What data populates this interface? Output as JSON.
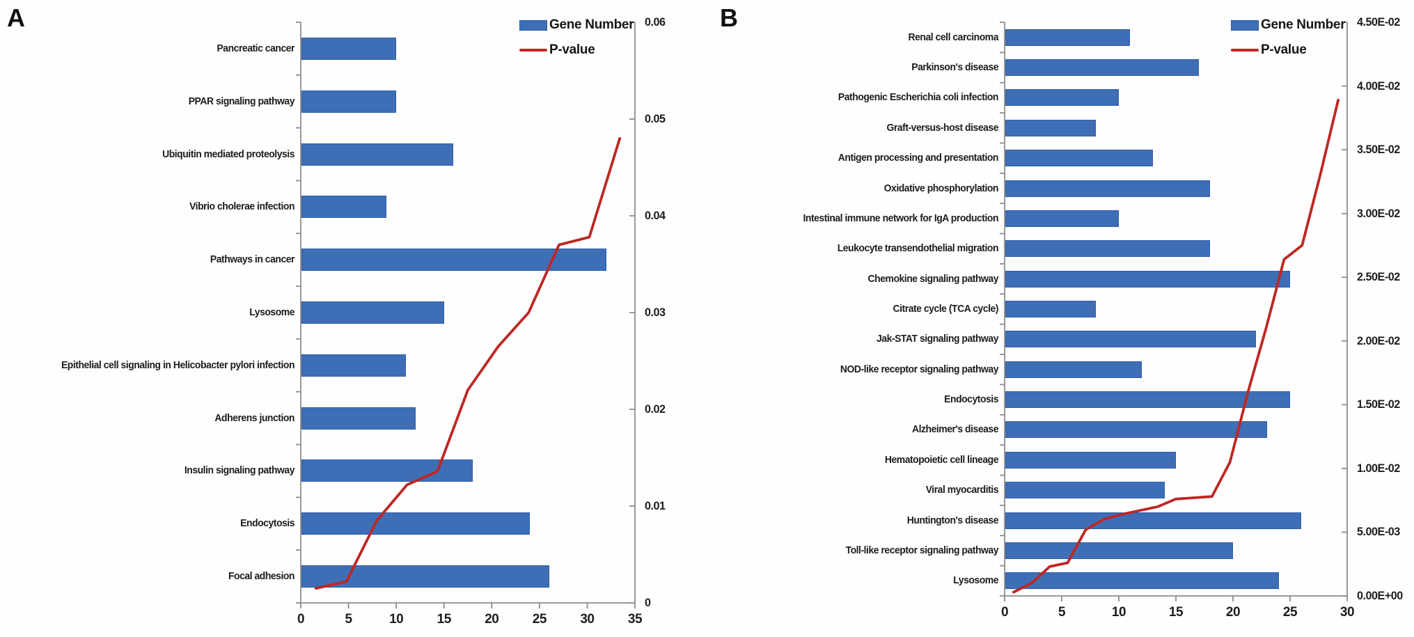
{
  "figure": {
    "description": "KEGG pathway enrichment dual-panel figure: horizontal blue bars show Gene Number per pathway, red line shows P-value on right secondary axis"
  },
  "chart_data": [
    {
      "type": "bar",
      "orientation": "horizontal",
      "panel_label": "A",
      "legend": {
        "gene_number": "Gene Number",
        "p_value": "P-value"
      },
      "series": [
        {
          "name": "Gene Number",
          "type": "bar",
          "color": "#3e6eb6",
          "axis": "bottom"
        },
        {
          "name": "P-value",
          "type": "line",
          "color": "#be2723",
          "axis": "right"
        }
      ],
      "x_axis": {
        "min": 0,
        "max": 35,
        "ticks": [
          0,
          5,
          10,
          15,
          20,
          25,
          30,
          35
        ]
      },
      "secondary_axis": {
        "min": 0,
        "max": 0.06,
        "ticks": [
          {
            "value": 0,
            "label": "0"
          },
          {
            "value": 0.01,
            "label": "0.01"
          },
          {
            "value": 0.02,
            "label": "0.02"
          },
          {
            "value": 0.03,
            "label": "0.03"
          },
          {
            "value": 0.04,
            "label": "0.04"
          },
          {
            "value": 0.05,
            "label": "0.05"
          },
          {
            "value": 0.06,
            "label": "0.06"
          }
        ]
      },
      "rows": [
        {
          "pathway": "Pancreatic cancer",
          "gene_number": 10,
          "p_value": 0.048
        },
        {
          "pathway": "PPAR signaling pathway",
          "gene_number": 10,
          "p_value": 0.0378
        },
        {
          "pathway": "Ubiquitin mediated proteolysis",
          "gene_number": 16,
          "p_value": 0.037
        },
        {
          "pathway": "Vibrio cholerae infection",
          "gene_number": 9,
          "p_value": 0.03
        },
        {
          "pathway": "Pathways in cancer",
          "gene_number": 32,
          "p_value": 0.0265
        },
        {
          "pathway": "Lysosome",
          "gene_number": 15,
          "p_value": 0.022
        },
        {
          "pathway": "Epithelial cell signaling in Helicobacter pylori infection",
          "gene_number": 11,
          "p_value": 0.0136
        },
        {
          "pathway": "Adherens junction",
          "gene_number": 12,
          "p_value": 0.0122
        },
        {
          "pathway": "Insulin signaling pathway",
          "gene_number": 18,
          "p_value": 0.0085
        },
        {
          "pathway": "Endocytosis",
          "gene_number": 24,
          "p_value": 0.0022
        },
        {
          "pathway": "Focal adhesion",
          "gene_number": 26,
          "p_value": 0.0015
        }
      ],
      "notes": "rows listed top to bottom; P-value line vertices run left-to-right in order of rows bottom-to-top (ascending p-value)"
    },
    {
      "type": "bar",
      "orientation": "horizontal",
      "panel_label": "B",
      "legend": {
        "gene_number": "Gene Number",
        "p_value": "P-value"
      },
      "series": [
        {
          "name": "Gene Number",
          "type": "bar",
          "color": "#3e6eb6",
          "axis": "bottom"
        },
        {
          "name": "P-value",
          "type": "line",
          "color": "#be2723",
          "axis": "right"
        }
      ],
      "x_axis": {
        "min": 0,
        "max": 30,
        "ticks": [
          0,
          5,
          10,
          15,
          20,
          25,
          30
        ]
      },
      "secondary_axis": {
        "min": 0,
        "max": 0.045,
        "ticks": [
          {
            "value": 0,
            "label": "0.00E+00"
          },
          {
            "value": 0.005,
            "label": "5.00E-03"
          },
          {
            "value": 0.01,
            "label": "1.00E-02"
          },
          {
            "value": 0.015,
            "label": "1.50E-02"
          },
          {
            "value": 0.02,
            "label": "2.00E-02"
          },
          {
            "value": 0.025,
            "label": "2.50E-02"
          },
          {
            "value": 0.03,
            "label": "3.00E-02"
          },
          {
            "value": 0.035,
            "label": "3.50E-02"
          },
          {
            "value": 0.04,
            "label": "4.00E-02"
          },
          {
            "value": 0.045,
            "label": "4.50E-02"
          }
        ]
      },
      "rows": [
        {
          "pathway": "Renal cell carcinoma",
          "gene_number": 11,
          "p_value": 0.0389
        },
        {
          "pathway": "Parkinson's disease",
          "gene_number": 17,
          "p_value": 0.033
        },
        {
          "pathway": "Pathogenic Escherichia coli infection",
          "gene_number": 10,
          "p_value": 0.0275
        },
        {
          "pathway": "Graft-versus-host disease",
          "gene_number": 8,
          "p_value": 0.0264
        },
        {
          "pathway": "Antigen processing and presentation",
          "gene_number": 13,
          "p_value": 0.021
        },
        {
          "pathway": "Oxidative phosphorylation",
          "gene_number": 18,
          "p_value": 0.016
        },
        {
          "pathway": "Intestinal immune network for IgA production",
          "gene_number": 10,
          "p_value": 0.0105
        },
        {
          "pathway": "Leukocyte transendothelial migration",
          "gene_number": 18,
          "p_value": 0.0078
        },
        {
          "pathway": "Chemokine signaling pathway",
          "gene_number": 25,
          "p_value": 0.0077
        },
        {
          "pathway": "Citrate cycle (TCA cycle)",
          "gene_number": 8,
          "p_value": 0.0076
        },
        {
          "pathway": "Jak-STAT signaling pathway",
          "gene_number": 22,
          "p_value": 0.007
        },
        {
          "pathway": "NOD-like receptor signaling pathway",
          "gene_number": 12,
          "p_value": 0.0067
        },
        {
          "pathway": "Endocytosis",
          "gene_number": 25,
          "p_value": 0.0064
        },
        {
          "pathway": "Alzheimer's disease",
          "gene_number": 23,
          "p_value": 0.006
        },
        {
          "pathway": "Hematopoietic cell lineage",
          "gene_number": 15,
          "p_value": 0.0052
        },
        {
          "pathway": "Viral myocarditis",
          "gene_number": 14,
          "p_value": 0.0026
        },
        {
          "pathway": "Huntington's disease",
          "gene_number": 26,
          "p_value": 0.0023
        },
        {
          "pathway": "Toll-like receptor signaling pathway",
          "gene_number": 20,
          "p_value": 0.001
        },
        {
          "pathway": "Lysosome",
          "gene_number": 24,
          "p_value": 0.0003
        }
      ],
      "notes": "rows listed top to bottom; P-value line vertices run left-to-right in order of rows bottom-to-top (ascending p-value)"
    }
  ],
  "colors": {
    "bar_fill": "#3e6eb6",
    "bar_border": "#2e5ca6",
    "line_red": "#be2723",
    "axis_gray": "#8c8c8c",
    "text": "#1d1d1d"
  }
}
